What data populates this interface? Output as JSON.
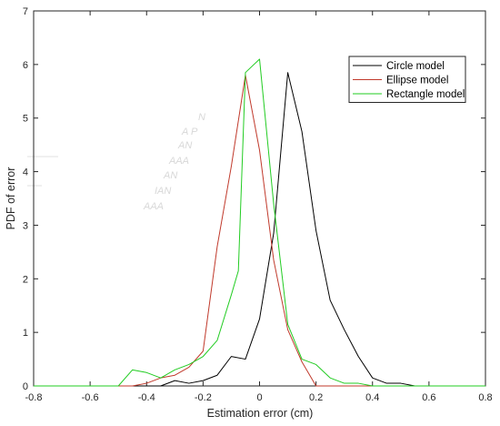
{
  "chart_data": {
    "type": "line",
    "title": "",
    "xlabel": "Estimation error (cm)",
    "ylabel": "PDF of error",
    "xlim": [
      -0.8,
      0.8
    ],
    "ylim": [
      0,
      7
    ],
    "xticks": [
      -0.8,
      -0.6,
      -0.4,
      -0.2,
      0,
      0.2,
      0.4,
      0.6,
      0.8
    ],
    "xtick_labels": [
      "-0.8",
      "-0.6",
      "-0.4",
      "-0.2",
      "0",
      "0.2",
      "0.4",
      "0.6",
      "0.8"
    ],
    "yticks": [
      0,
      1,
      2,
      3,
      4,
      5,
      6,
      7
    ],
    "ytick_labels": [
      "0",
      "1",
      "2",
      "3",
      "4",
      "5",
      "6",
      "7"
    ],
    "grid": false,
    "legend_position": "top-right",
    "series": [
      {
        "name": "Circle model",
        "color": "#000000",
        "x": [
          -0.8,
          -0.35,
          -0.3,
          -0.25,
          -0.2,
          -0.15,
          -0.1,
          -0.05,
          0,
          0.05,
          0.1,
          0.15,
          0.2,
          0.25,
          0.3,
          0.35,
          0.4,
          0.45,
          0.5,
          0.55,
          0.8
        ],
        "y": [
          0,
          0,
          0.1,
          0.05,
          0.1,
          0.2,
          0.55,
          0.5,
          1.25,
          2.85,
          5.85,
          4.75,
          2.9,
          1.6,
          1.05,
          0.55,
          0.15,
          0.05,
          0.05,
          0,
          0
        ]
      },
      {
        "name": "Ellipse model",
        "color": "#c0392b",
        "x": [
          -0.8,
          -0.45,
          -0.4,
          -0.35,
          -0.3,
          -0.25,
          -0.2,
          -0.15,
          -0.1,
          -0.05,
          0,
          0.05,
          0.1,
          0.15,
          0.2,
          0.25,
          0.8
        ],
        "y": [
          0,
          0,
          0.05,
          0.15,
          0.2,
          0.35,
          0.65,
          2.6,
          4.1,
          5.8,
          4.4,
          2.35,
          1.05,
          0.45,
          0,
          0,
          0
        ]
      },
      {
        "name": "Rectangle model",
        "color": "#22cc22",
        "x": [
          -0.8,
          -0.5,
          -0.45,
          -0.4,
          -0.35,
          -0.3,
          -0.25,
          -0.2,
          -0.15,
          -0.1,
          -0.075,
          -0.05,
          0,
          0.05,
          0.1,
          0.15,
          0.2,
          0.25,
          0.3,
          0.35,
          0.4,
          0.8
        ],
        "y": [
          0,
          0,
          0.3,
          0.25,
          0.15,
          0.3,
          0.4,
          0.55,
          0.85,
          1.7,
          2.15,
          5.85,
          6.1,
          3.4,
          1.15,
          0.5,
          0.4,
          0.15,
          0.05,
          0.05,
          0,
          0
        ]
      }
    ]
  },
  "artifacts": {
    "stray_text_lines": [
      "N",
      "A  P",
      "AN",
      "AAA",
      "AN",
      "IAN",
      "AAA"
    ]
  }
}
